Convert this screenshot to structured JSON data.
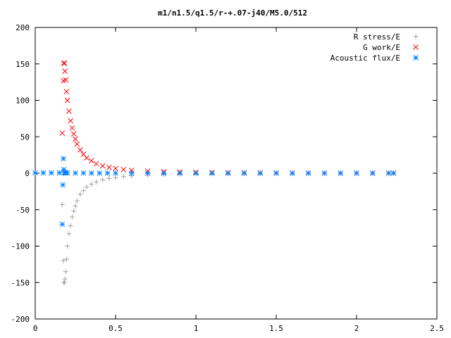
{
  "chart_data": {
    "type": "scatter",
    "title": "m1/n1.5/q1.5/r-+.07-j40/M5.0/512",
    "xlabel": "",
    "ylabel": "",
    "xlim": [
      0,
      2.5
    ],
    "ylim": [
      -200,
      200
    ],
    "x_ticks": [
      0,
      0.5,
      1,
      1.5,
      2,
      2.5
    ],
    "x_tick_labels": [
      "0",
      "0.5",
      "1",
      "1.5",
      "2",
      "2.5"
    ],
    "y_ticks": [
      -200,
      -150,
      -100,
      -50,
      0,
      50,
      100,
      150,
      200
    ],
    "y_tick_labels": [
      "-200",
      "-150",
      "-100",
      "-50",
      "0",
      "50",
      "100",
      "150",
      "200"
    ],
    "grid": false,
    "legend_position": "top-right",
    "series": [
      {
        "name": "R stress/E",
        "marker": "plus",
        "color": "#a0a0a0",
        "x": [
          0.168,
          0.175,
          0.178,
          0.182,
          0.185,
          0.19,
          0.195,
          0.2,
          0.21,
          0.22,
          0.23,
          0.24,
          0.25,
          0.26,
          0.28,
          0.3,
          0.32,
          0.35,
          0.38,
          0.42,
          0.46,
          0.5,
          0.55,
          0.6,
          0.7,
          0.8,
          0.9,
          1.0,
          1.1,
          1.2,
          1.3,
          1.4,
          1.5,
          1.6,
          1.7,
          1.8,
          1.9,
          2.0,
          2.1,
          2.2,
          2.23
        ],
        "y": [
          -43,
          -120,
          -150,
          -150,
          -145,
          -135,
          -118,
          -100,
          -83,
          -72,
          -60,
          -52,
          -45,
          -38,
          -29,
          -24,
          -19,
          -15,
          -12,
          -9,
          -7,
          -6,
          -4.5,
          -3.5,
          -2.5,
          -1.8,
          -1.3,
          -1,
          -0.8,
          -0.6,
          -0.5,
          -0.4,
          -0.3,
          -0.3,
          -0.2,
          -0.2,
          -0.2,
          -0.1,
          -0.1,
          -0.1,
          -0.1
        ]
      },
      {
        "name": "G work/E",
        "marker": "cross",
        "color": "#ff0000",
        "x": [
          0.168,
          0.175,
          0.178,
          0.182,
          0.185,
          0.19,
          0.195,
          0.2,
          0.21,
          0.22,
          0.23,
          0.24,
          0.25,
          0.26,
          0.28,
          0.3,
          0.32,
          0.35,
          0.38,
          0.42,
          0.46,
          0.5,
          0.55,
          0.6,
          0.7,
          0.8,
          0.9,
          1.0,
          1.1,
          1.2,
          1.3,
          1.4,
          1.5,
          1.6,
          1.7,
          1.8,
          1.9,
          2.0,
          2.1,
          2.2,
          2.23
        ],
        "y": [
          55,
          127,
          151,
          151,
          140,
          128,
          112,
          100,
          85,
          72,
          62,
          54,
          47,
          40,
          32,
          26,
          21,
          17,
          13,
          10,
          8,
          6.5,
          5,
          4,
          3,
          2.2,
          1.6,
          1.2,
          1,
          0.8,
          0.6,
          0.5,
          0.4,
          0.3,
          0.3,
          0.2,
          0.2,
          0.2,
          0.1,
          0.1,
          0.1
        ]
      },
      {
        "name": "Acoustic flux/E",
        "marker": "star",
        "color": "#0080ff",
        "x": [
          0.0,
          0.05,
          0.1,
          0.15,
          0.168,
          0.172,
          0.175,
          0.178,
          0.182,
          0.185,
          0.19,
          0.2,
          0.25,
          0.3,
          0.35,
          0.4,
          0.45,
          0.5,
          0.6,
          0.7,
          0.8,
          0.9,
          1.0,
          1.1,
          1.2,
          1.3,
          1.4,
          1.5,
          1.6,
          1.7,
          1.8,
          1.9,
          2.0,
          2.1,
          2.2,
          2.23
        ],
        "y": [
          0.5,
          0.5,
          0.5,
          0.5,
          -70,
          -16,
          20,
          5,
          1,
          0.5,
          0.5,
          0.3,
          0.2,
          0.2,
          0.1,
          0.1,
          0.1,
          0.1,
          0.1,
          0.1,
          0.1,
          0.1,
          0.1,
          0.1,
          0.1,
          0.1,
          0.1,
          0.1,
          0.1,
          0.1,
          0.1,
          0.1,
          0.1,
          0.1,
          0.1,
          0.1
        ]
      }
    ]
  }
}
